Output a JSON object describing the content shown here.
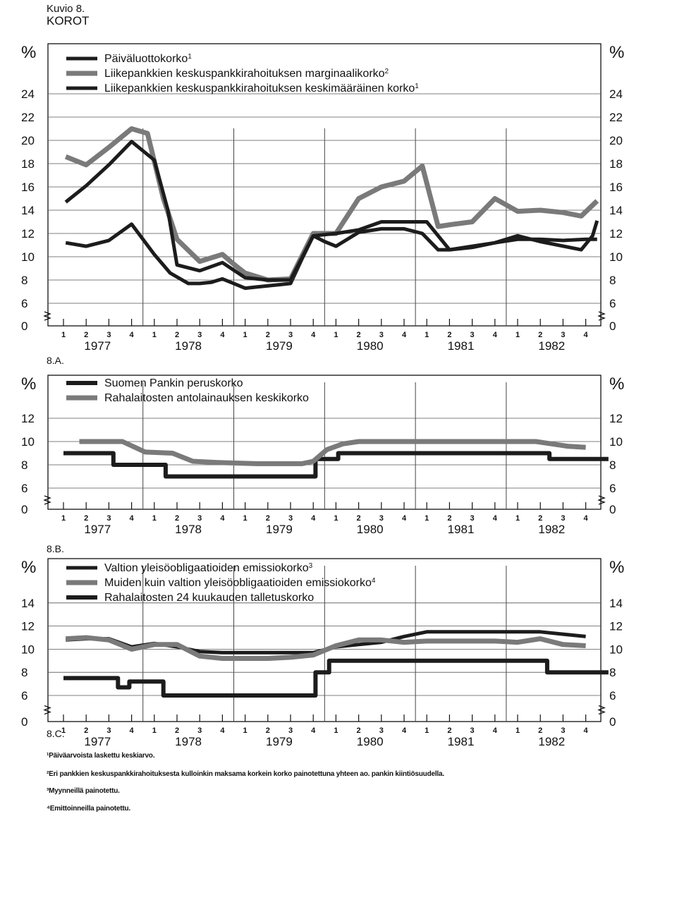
{
  "figure": {
    "label": "Kuvio 8.",
    "title": "KOROT"
  },
  "chart_data": [
    {
      "type": "line",
      "panel_label": "8.A.",
      "unit": "%",
      "x_categories": [
        "1",
        "2",
        "3",
        "4",
        "1",
        "2",
        "3",
        "4",
        "1",
        "2",
        "3",
        "4",
        "1",
        "2",
        "3",
        "4",
        "1",
        "2",
        "3",
        "4",
        "1",
        "2",
        "3",
        "4"
      ],
      "years": [
        "1977",
        "1978",
        "1979",
        "1980",
        "1981",
        "1982"
      ],
      "y_ticks": [
        0,
        6,
        8,
        10,
        12,
        14,
        16,
        18,
        20,
        22,
        24
      ],
      "ylim": [
        6,
        26
      ],
      "axis_break": true,
      "grid": true,
      "legend_position": "top-left",
      "series": [
        {
          "name": "Päiväluottokorko",
          "note_mark": "1",
          "color": "#1c1c1c",
          "width": 5,
          "x": [
            0.1,
            1,
            2,
            3,
            4,
            4.7,
            5.5,
            6,
            6.5,
            7,
            7.5,
            8,
            8.5,
            9,
            9.5,
            10,
            10.5,
            11,
            11.5,
            12,
            13,
            14,
            15,
            15.8,
            16.5,
            17,
            18,
            19,
            20,
            21,
            22.8,
            23.3,
            23.5
          ],
          "y": [
            11.2,
            10.9,
            11.4,
            12.8,
            10.2,
            8.6,
            7.7,
            7.7,
            7.8,
            8.1,
            7.7,
            7.3,
            7.4,
            7.5,
            7.6,
            7.7,
            9.8,
            11.8,
            11.3,
            10.9,
            12.1,
            12.4,
            12.4,
            12.0,
            10.6,
            10.6,
            10.8,
            11.2,
            11.8,
            11.3,
            10.6,
            11.8,
            13.1
          ]
        },
        {
          "name": "Liikepankkien keskuspankkirahoituksen marginaalikorko",
          "note_mark": "2",
          "color": "#7a7a7a",
          "width": 7,
          "x": [
            0.1,
            1,
            2,
            3,
            3.7,
            4.4,
            5,
            6,
            7,
            7.6,
            8,
            9,
            10,
            11,
            12,
            13,
            14,
            15,
            15.8,
            16.5,
            17.2,
            18,
            19,
            20,
            21,
            22,
            22.8,
            23.5
          ],
          "y": [
            18.6,
            17.9,
            19.4,
            21.0,
            20.6,
            15.0,
            11.5,
            9.6,
            10.2,
            9.2,
            8.6,
            8.0,
            8.1,
            12.0,
            12.0,
            15.0,
            16.0,
            16.5,
            17.8,
            12.6,
            12.8,
            13.0,
            15.0,
            13.9,
            14.0,
            13.8,
            13.5,
            14.8
          ]
        },
        {
          "name": "Liikepankkien keskuspankkirahoituksen keskimääräinen korko",
          "note_mark": "1",
          "color": "#1c1c1c",
          "width": 5,
          "x": [
            0.1,
            1,
            2,
            3,
            4,
            4.6,
            5,
            6,
            7,
            8,
            9,
            10,
            11,
            12,
            13,
            14,
            15,
            16,
            17,
            18,
            19,
            20,
            21,
            22,
            23,
            23.5
          ],
          "y": [
            14.7,
            16.1,
            17.9,
            19.9,
            18.3,
            14.0,
            9.3,
            8.8,
            9.5,
            8.2,
            8.0,
            8.0,
            11.8,
            12.0,
            12.3,
            13.0,
            13.0,
            13.0,
            10.6,
            10.9,
            11.2,
            11.5,
            11.5,
            11.4,
            11.5,
            11.5
          ]
        }
      ]
    },
    {
      "type": "line",
      "panel_label": "8.B.",
      "unit": "%",
      "x_categories": [
        "1",
        "2",
        "3",
        "4",
        "1",
        "2",
        "3",
        "4",
        "1",
        "2",
        "3",
        "4",
        "1",
        "2",
        "3",
        "4",
        "1",
        "2",
        "3",
        "4",
        "1",
        "2",
        "3",
        "4"
      ],
      "years": [
        "1977",
        "1978",
        "1979",
        "1980",
        "1981",
        "1982"
      ],
      "y_ticks": [
        0,
        6,
        8,
        10,
        12
      ],
      "ylim": [
        6,
        14
      ],
      "axis_break": true,
      "grid": true,
      "legend_position": "top-left",
      "series": [
        {
          "name": "Suomen Pankin peruskorko",
          "color": "#1c1c1c",
          "width": 6,
          "x": [
            0,
            2.2,
            2.2,
            4.5,
            4.5,
            11.1,
            11.1,
            12.1,
            12.1,
            21.4,
            21.4,
            24
          ],
          "y": [
            9.0,
            9.0,
            8.0,
            8.0,
            7.0,
            7.0,
            8.5,
            8.5,
            9.0,
            9.0,
            8.5,
            8.5
          ]
        },
        {
          "name": "Rahalaitosten antolainauksen keskikorko",
          "color": "#7a7a7a",
          "width": 7,
          "x": [
            0.7,
            2.6,
            3.6,
            4.8,
            5.7,
            6.8,
            8.5,
            10.5,
            11.0,
            11.6,
            12.3,
            13.0,
            15.0,
            17.0,
            19.0,
            20.8,
            21.5,
            22.2,
            23.0
          ],
          "y": [
            10.0,
            10.0,
            9.1,
            9.0,
            8.3,
            8.2,
            8.1,
            8.1,
            8.3,
            9.3,
            9.8,
            10.0,
            10.0,
            10.0,
            10.0,
            10.0,
            9.8,
            9.6,
            9.5
          ]
        }
      ]
    },
    {
      "type": "line",
      "panel_label": "8.C.",
      "unit": "%",
      "x_categories": [
        "1",
        "2",
        "3",
        "4",
        "1",
        "2",
        "3",
        "4",
        "1",
        "2",
        "3",
        "4",
        "1",
        "2",
        "3",
        "4",
        "1",
        "2",
        "3",
        "4",
        "1",
        "2",
        "3",
        "4"
      ],
      "years": [
        "1977",
        "1978",
        "1979",
        "1980",
        "1981",
        "1982"
      ],
      "y_ticks": [
        0,
        6,
        8,
        10,
        12,
        14
      ],
      "ylim": [
        6,
        16
      ],
      "axis_break": true,
      "grid": true,
      "legend_position": "top-left",
      "series": [
        {
          "name": "Valtion yleisöobligaatioiden emissiokorko",
          "note_mark": "3",
          "color": "#1c1c1c",
          "width": 5,
          "x": [
            0.1,
            1,
            2,
            3,
            4,
            5,
            6,
            7,
            8,
            9,
            10,
            11,
            12,
            13,
            14,
            15,
            16,
            17,
            18,
            19,
            20,
            21,
            22,
            23
          ],
          "y": [
            10.8,
            10.9,
            10.9,
            10.2,
            10.5,
            10.2,
            9.8,
            9.7,
            9.7,
            9.7,
            9.7,
            9.7,
            10.2,
            10.4,
            10.6,
            11.1,
            11.5,
            11.5,
            11.5,
            11.5,
            11.5,
            11.5,
            11.3,
            11.1
          ]
        },
        {
          "name": "Muiden kuin valtion yleisöobligaatioiden emissiokorko",
          "note_mark": "4",
          "color": "#7a7a7a",
          "width": 7,
          "x": [
            0.1,
            1,
            2,
            3,
            4,
            5,
            6,
            7,
            8,
            9,
            10,
            11,
            12,
            13,
            14,
            15,
            16,
            17,
            18,
            19,
            20,
            21,
            22,
            23
          ],
          "y": [
            10.9,
            11.0,
            10.8,
            10.0,
            10.4,
            10.4,
            9.4,
            9.2,
            9.2,
            9.2,
            9.3,
            9.5,
            10.3,
            10.8,
            10.8,
            10.6,
            10.7,
            10.7,
            10.7,
            10.7,
            10.6,
            10.9,
            10.4,
            10.3
          ]
        },
        {
          "name": "Rahalaitosten 24 kuukauden talletuskorko",
          "color": "#1c1c1c",
          "width": 6,
          "x": [
            0,
            2.4,
            2.4,
            2.9,
            2.9,
            4.4,
            4.4,
            11.1,
            11.1,
            11.7,
            11.7,
            21.3,
            21.3,
            24
          ],
          "y": [
            7.5,
            7.5,
            6.7,
            6.7,
            7.2,
            7.2,
            6.0,
            6.0,
            8.0,
            8.0,
            9.0,
            9.0,
            8.0,
            8.0
          ]
        }
      ]
    }
  ],
  "footnotes": [
    "¹Päiväarvoista laskettu keskiarvo.",
    "²Eri pankkien keskuspankkirahoituksesta kulloinkin maksama korkein korko painotettuna yhteen ao. pankin kiintiösuudella.",
    "³Myynneillä painotettu.",
    "⁴Emittoinneilla painotettu."
  ]
}
